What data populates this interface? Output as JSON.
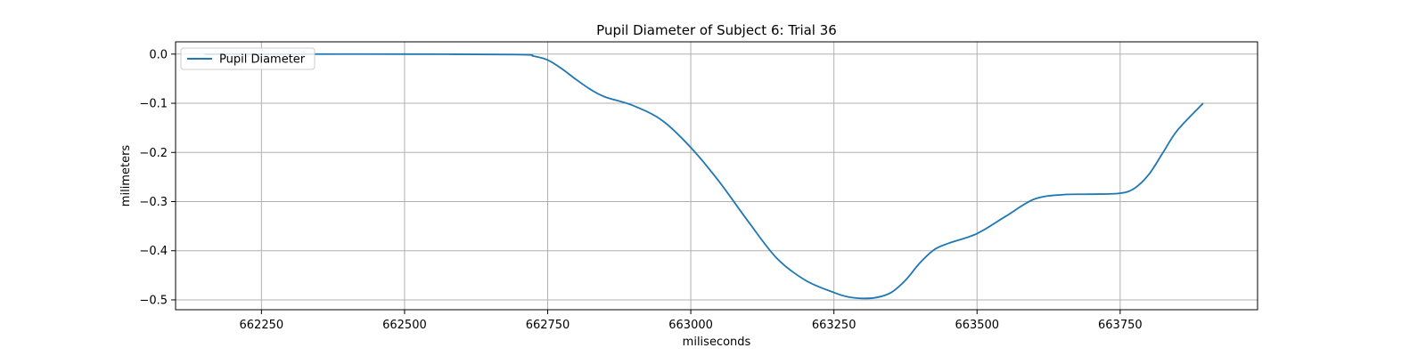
{
  "chart_data": {
    "type": "line",
    "title": "Pupil Diameter of Subject 6: Trial 36",
    "xlabel": "miliseconds",
    "ylabel": "milimeters",
    "xlim": [
      662100,
      663990
    ],
    "ylim": [
      -0.52,
      0.025
    ],
    "xticks": [
      662250,
      662500,
      662750,
      663000,
      663250,
      663500,
      663750
    ],
    "yticks": [
      0.0,
      -0.1,
      -0.2,
      -0.3,
      -0.4,
      -0.5
    ],
    "ytick_labels": [
      "0.0",
      "−0.1",
      "−0.2",
      "−0.3",
      "−0.4",
      "−0.5"
    ],
    "grid": true,
    "legend_position": "top-left",
    "series": [
      {
        "name": "Pupil Diameter",
        "color": "#1f77b4",
        "x": [
          662150,
          662300,
          662500,
          662700,
          662725,
          662750,
          662775,
          662800,
          662825,
          662850,
          662900,
          662950,
          663000,
          663050,
          663100,
          663150,
          663200,
          663250,
          663275,
          663300,
          663325,
          663350,
          663375,
          663400,
          663425,
          663450,
          663500,
          663550,
          663600,
          663650,
          663700,
          663750,
          663775,
          663800,
          663825,
          663850,
          663895
        ],
        "y": [
          0.0,
          0.0,
          0.0,
          -0.001,
          -0.004,
          -0.012,
          -0.03,
          -0.052,
          -0.072,
          -0.087,
          -0.105,
          -0.135,
          -0.19,
          -0.26,
          -0.34,
          -0.415,
          -0.46,
          -0.485,
          -0.494,
          -0.497,
          -0.495,
          -0.485,
          -0.46,
          -0.425,
          -0.398,
          -0.385,
          -0.365,
          -0.33,
          -0.295,
          -0.286,
          -0.285,
          -0.283,
          -0.273,
          -0.245,
          -0.2,
          -0.155,
          -0.1
        ]
      }
    ]
  }
}
